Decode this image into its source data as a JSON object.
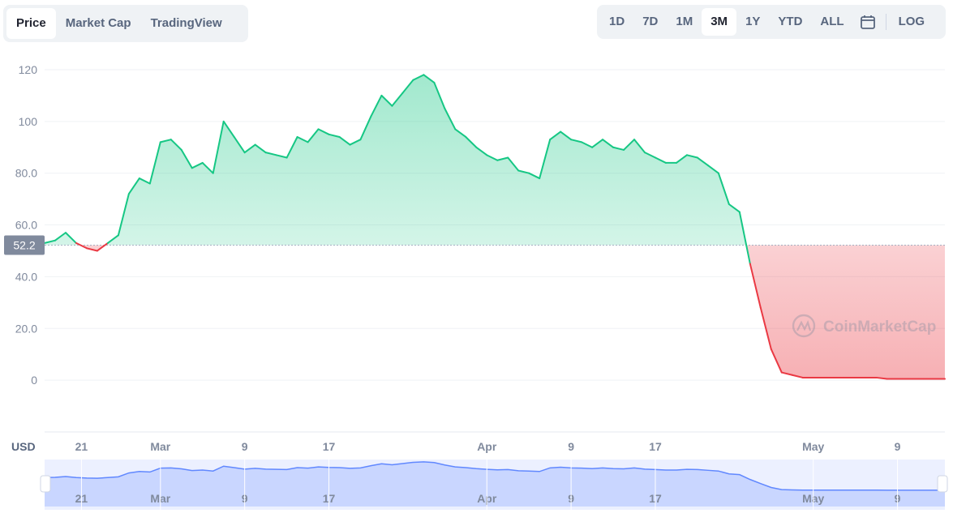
{
  "tabs": [
    {
      "label": "Price",
      "active": true
    },
    {
      "label": "Market Cap",
      "active": false
    },
    {
      "label": "TradingView",
      "active": false
    }
  ],
  "ranges": [
    {
      "label": "1D",
      "active": false
    },
    {
      "label": "7D",
      "active": false
    },
    {
      "label": "1M",
      "active": false
    },
    {
      "label": "3M",
      "active": true
    },
    {
      "label": "1Y",
      "active": false
    },
    {
      "label": "YTD",
      "active": false
    },
    {
      "label": "ALL",
      "active": false
    }
  ],
  "log_label": "LOG",
  "currency_label": "USD",
  "watermark": "CoinMarketCap",
  "colors": {
    "up": "#16c784",
    "down": "#ea3943",
    "navigator": "#6188ff",
    "grid": "#eff2f5"
  },
  "chart_data": {
    "type": "line",
    "title": "",
    "ylim": [
      -20,
      125
    ],
    "yticks": [
      "120",
      "100",
      "80.0",
      "60.0",
      "40.0",
      "20.0",
      "0"
    ],
    "ytick_values": [
      120,
      100,
      80,
      60,
      40,
      20,
      0
    ],
    "reference_value": 52.2,
    "reference_label": "52.2",
    "xticks": [
      "21",
      "Mar",
      "9",
      "17",
      "Apr",
      "9",
      "17",
      "May",
      "9"
    ],
    "xtick_positions": [
      3.5,
      11,
      19,
      27,
      42,
      50,
      58,
      73,
      81
    ],
    "xlim": [
      0,
      85.5
    ],
    "series": [
      {
        "x": [
          0,
          1,
          2,
          3,
          4,
          5,
          6,
          7,
          8,
          9,
          10,
          11,
          12,
          13,
          14,
          15,
          16,
          17,
          18,
          19,
          20,
          21,
          22,
          23,
          24,
          25,
          26,
          27,
          28,
          29,
          30,
          31,
          32,
          33,
          34,
          35,
          36,
          37,
          38,
          39,
          40,
          41,
          42,
          43,
          44,
          45,
          46,
          47,
          48,
          49,
          50,
          51,
          52,
          53,
          54,
          55,
          56,
          57,
          58,
          59,
          60,
          61,
          62,
          63,
          64,
          65,
          66,
          67,
          68,
          69,
          70,
          71,
          72,
          73,
          74,
          75,
          76,
          77,
          78,
          79,
          80,
          80.5,
          81,
          81.5,
          82,
          82.5,
          83,
          83.5,
          84,
          85.5
        ],
        "y": [
          53,
          54,
          57,
          53,
          51,
          50,
          53,
          56,
          72,
          78,
          76,
          92,
          93,
          89,
          82,
          84,
          80,
          100,
          94,
          88,
          91,
          88,
          87,
          86,
          94,
          92,
          97,
          95,
          94,
          91,
          93,
          102,
          110,
          106,
          111,
          116,
          118,
          115,
          105,
          97,
          94,
          90,
          87,
          85,
          86,
          81,
          80,
          78,
          93,
          96,
          93,
          92,
          90,
          93,
          90,
          89,
          93,
          88,
          86,
          84,
          84,
          87,
          86,
          83,
          80,
          68,
          65,
          45,
          28,
          12,
          3,
          2,
          1,
          1,
          1,
          1,
          1,
          1,
          1,
          1,
          0.5,
          0.5,
          0.5,
          0.5,
          0.5,
          0.5,
          0.5,
          0.5,
          0.5,
          0.5
        ]
      }
    ]
  }
}
